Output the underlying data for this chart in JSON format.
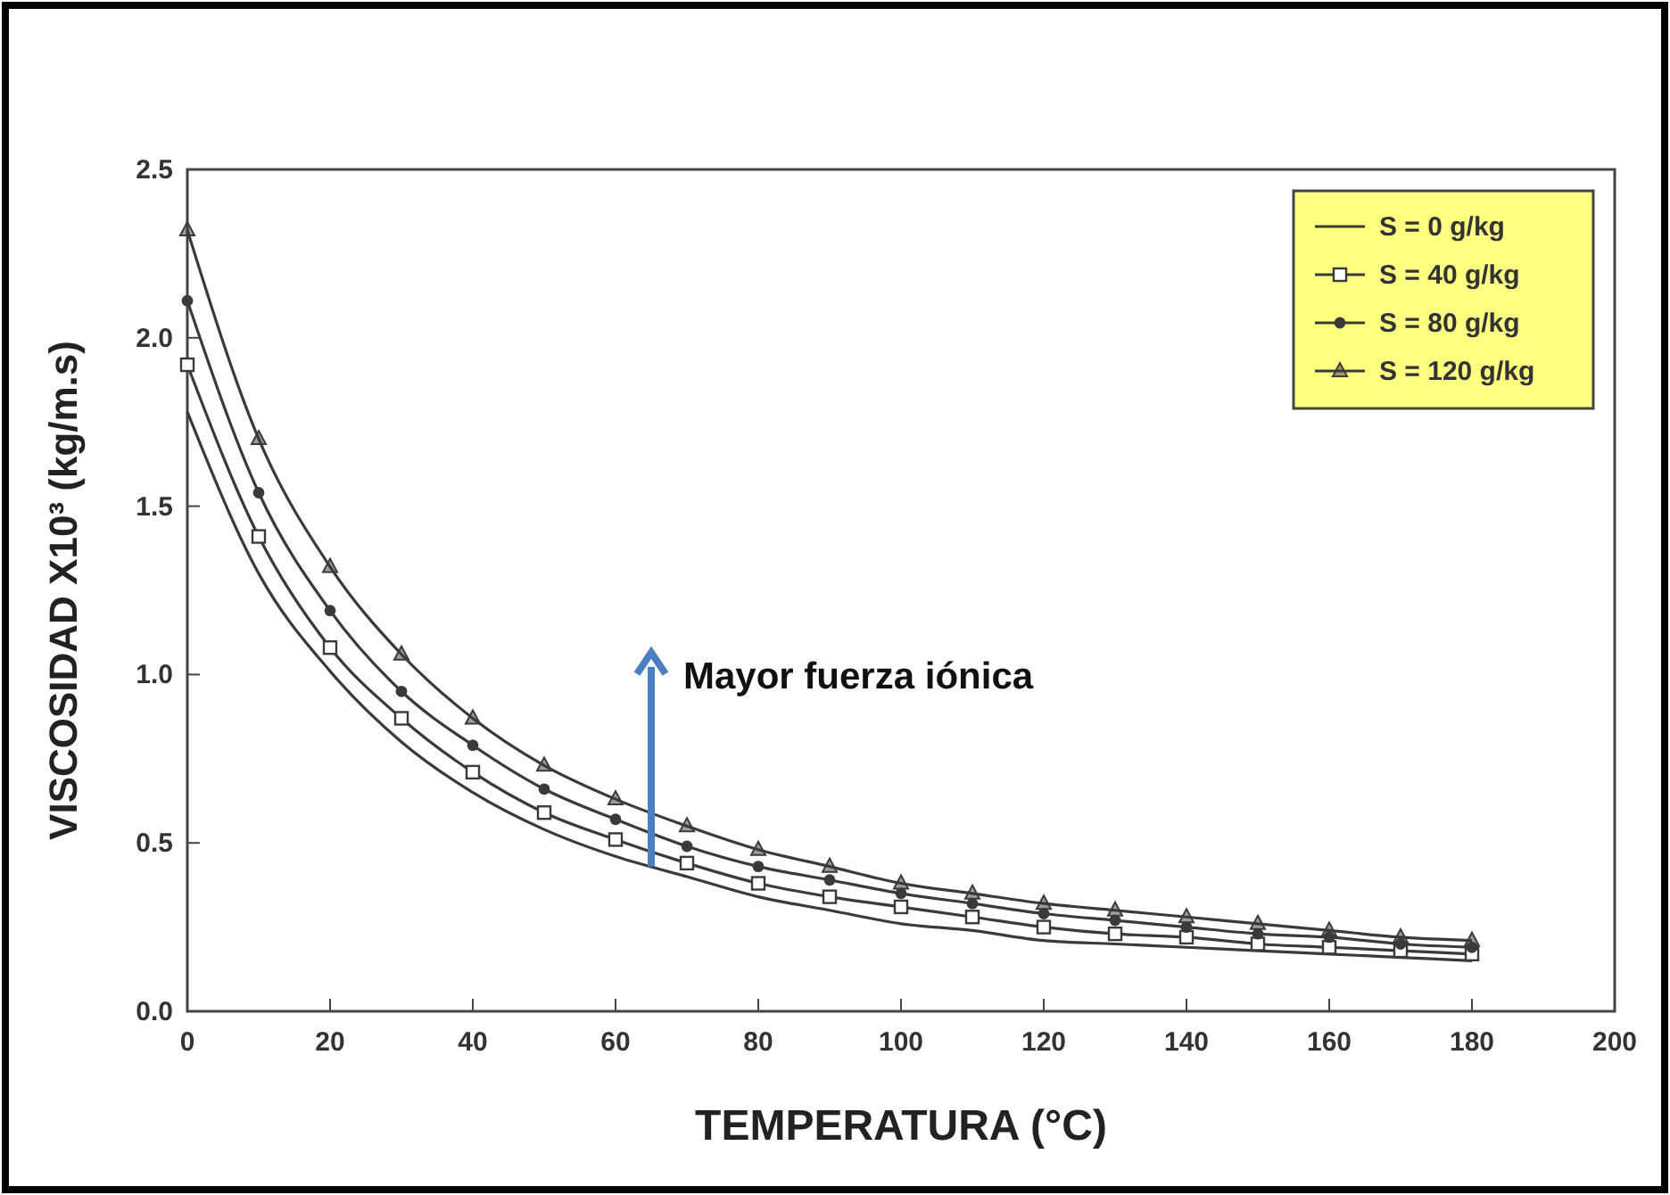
{
  "chart_data": {
    "type": "line",
    "xlabel": "TEMPERATURA (°C)",
    "ylabel": "VISCOSIDAD X10³ (kg/m.s)",
    "x": [
      0,
      10,
      20,
      30,
      40,
      50,
      60,
      70,
      80,
      90,
      100,
      110,
      120,
      130,
      140,
      150,
      160,
      170,
      180
    ],
    "series": [
      {
        "name": "S = 0 g/kg",
        "color": "#3a3a3a",
        "marker": "none",
        "values": [
          1.78,
          1.3,
          1.01,
          0.8,
          0.65,
          0.54,
          0.46,
          0.4,
          0.34,
          0.3,
          0.26,
          0.24,
          0.21,
          0.2,
          0.19,
          0.18,
          0.17,
          0.16,
          0.15
        ]
      },
      {
        "name": "S = 40 g/kg",
        "color": "#3a3a3a",
        "marker": "square",
        "values": [
          1.92,
          1.41,
          1.08,
          0.87,
          0.71,
          0.59,
          0.51,
          0.44,
          0.38,
          0.34,
          0.31,
          0.28,
          0.25,
          0.23,
          0.22,
          0.2,
          0.19,
          0.18,
          0.17
        ]
      },
      {
        "name": "S = 80 g/kg",
        "color": "#3a3a3a",
        "marker": "circle",
        "values": [
          2.11,
          1.54,
          1.19,
          0.95,
          0.79,
          0.66,
          0.57,
          0.49,
          0.43,
          0.39,
          0.35,
          0.32,
          0.29,
          0.27,
          0.25,
          0.23,
          0.22,
          0.2,
          0.19
        ]
      },
      {
        "name": "S = 120 g/kg",
        "color": "#3a3a3a",
        "marker": "triangle",
        "values": [
          2.32,
          1.7,
          1.32,
          1.06,
          0.87,
          0.73,
          0.63,
          0.55,
          0.48,
          0.43,
          0.38,
          0.35,
          0.32,
          0.3,
          0.28,
          0.26,
          0.24,
          0.22,
          0.21
        ]
      }
    ],
    "xlim": [
      0,
      200
    ],
    "xticks": [
      0,
      20,
      40,
      60,
      80,
      100,
      120,
      140,
      160,
      180,
      200
    ],
    "ylim": [
      0,
      2.5
    ],
    "yticks": [
      {
        "value": 0,
        "label": "0.0"
      },
      {
        "value": 0.5,
        "label": "0.5"
      },
      {
        "value": 1,
        "label": "1.0"
      },
      {
        "value": 1.5,
        "label": "1.5"
      },
      {
        "value": 2,
        "label": "2.0"
      },
      {
        "value": 2.5,
        "label": "2.5"
      }
    ],
    "grid": false,
    "legend": "top right",
    "annotations": [
      {
        "text": "Mayor fuerza iónica",
        "x": 65,
        "y": 0.43
      }
    ]
  }
}
